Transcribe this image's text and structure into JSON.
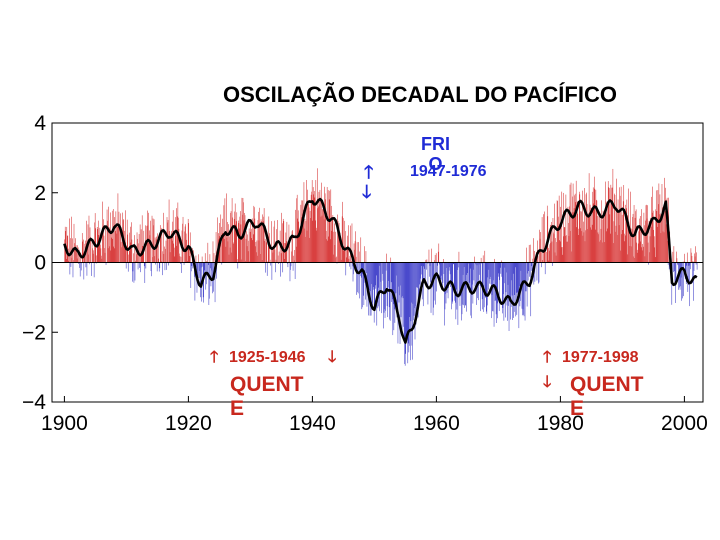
{
  "chart_data": {
    "type": "bar",
    "title": "OSCILAÇÃO DECADAL DO PACÍFICO",
    "xlabel": "",
    "ylabel": "",
    "xlim": [
      1898,
      2003
    ],
    "ylim": [
      -4,
      4
    ],
    "x_ticks": [
      1900,
      1920,
      1940,
      1960,
      1980,
      2000
    ],
    "y_ticks": [
      {
        "value": 4,
        "label": "4"
      },
      {
        "value": 2,
        "label": "2"
      },
      {
        "value": 0,
        "label": "0"
      },
      {
        "value": -2,
        "label": "−2"
      },
      {
        "value": -4,
        "label": "−4"
      }
    ],
    "colors": {
      "positive": "#d94040",
      "negative": "#4a4acc",
      "smooth_line": "#000000"
    },
    "smoothed_anchors": {
      "x": [
        1900,
        1902,
        1905,
        1908,
        1911,
        1914,
        1917,
        1920,
        1922,
        1924,
        1926,
        1928,
        1931,
        1934,
        1937,
        1940,
        1943,
        1946,
        1948,
        1950,
        1952,
        1954,
        1955,
        1956,
        1958,
        1960,
        1963,
        1966,
        1969,
        1972,
        1975,
        1977,
        1980,
        1983,
        1986,
        1989,
        1992,
        1995,
        1997,
        1998,
        2000,
        2002
      ],
      "y": [
        0.5,
        0.2,
        0.6,
        1.1,
        0.3,
        0.5,
        0.9,
        0.4,
        -0.6,
        -0.3,
        1.0,
        0.8,
        1.2,
        0.4,
        0.6,
        1.9,
        1.3,
        0.2,
        -0.3,
        -1.3,
        -0.6,
        -1.5,
        -2.4,
        -1.9,
        -0.6,
        -0.5,
        -0.8,
        -0.7,
        -0.8,
        -1.2,
        -0.5,
        0.4,
        1.2,
        1.6,
        1.4,
        1.7,
        0.8,
        1.1,
        1.6,
        -0.5,
        -0.3,
        -0.6
      ]
    },
    "annotations": {
      "cool_label": "FRI\nO",
      "cool_period": "1947-1976",
      "warm1_period": "1925-1946",
      "warm1_label": "QUENT\nE",
      "warm2_period": "1977-1998",
      "warm2_label": "QUENT\nE",
      "arrow_up": "🡑",
      "arrow_down": "🡓"
    }
  }
}
